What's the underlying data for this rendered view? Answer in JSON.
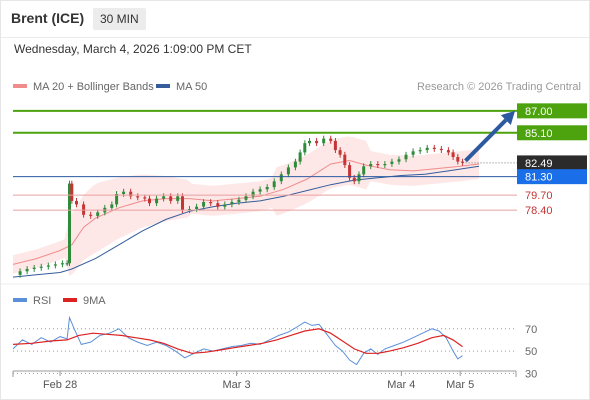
{
  "header": {
    "title": "Brent (ICE)",
    "timeframe": "30 MIN",
    "datetime": "Wednesday, March 4, 2026 1:09:00 PM CET"
  },
  "legend": {
    "items": [
      {
        "label": "MA 20 + Bollinger Bands",
        "color": "#f08c8c"
      },
      {
        "label": "MA 50",
        "color": "#355c9b"
      }
    ],
    "copyright": "Research © 2026 Trading Central"
  },
  "colors": {
    "up_candle": "#2e8b3a",
    "down_candle": "#c43535",
    "bollinger_fill": "#fde3e3",
    "ma20": "#f08c8c",
    "ma50": "#355c9b",
    "resistance": "#4ca30d",
    "support": "#e8a0a0",
    "pivot": "#2c5aa0",
    "last_price_tag": "#2b2b2b",
    "pivot_tag": "#1a6ee8",
    "arrow": "#2c5aa0",
    "rsi": "#5b8fd8",
    "rsi_ma": "#dd2222"
  },
  "chart_data": [
    {
      "type": "line",
      "subtype": "candlestick",
      "ylim": [
        72.0,
        88.2
      ],
      "x_ticks": [
        "Feb 28",
        "Mar 3",
        "Mar 4",
        "Mar 5"
      ],
      "last_price": 82.49,
      "levels": [
        {
          "label": "87.00",
          "value": 87.0,
          "kind": "resistance"
        },
        {
          "label": "85.10",
          "value": 85.1,
          "kind": "resistance"
        },
        {
          "label": "82.49",
          "value": 82.49,
          "kind": "last"
        },
        {
          "label": "81.30",
          "value": 81.3,
          "kind": "pivot"
        },
        {
          "label": "79.70",
          "value": 79.7,
          "kind": "support"
        },
        {
          "label": "78.40",
          "value": 78.4,
          "kind": "support"
        }
      ],
      "series": [
        {
          "name": "MA 20 + Bollinger Bands",
          "values": [
            {
              "x": 0,
              "y": 73.7
            },
            {
              "x": 10,
              "y": 74.2
            },
            {
              "x": 20,
              "y": 74.9
            },
            {
              "x": 25,
              "y": 75.4
            },
            {
              "x": 30,
              "y": 76.9
            },
            {
              "x": 35,
              "y": 77.7
            },
            {
              "x": 45,
              "y": 78.6
            },
            {
              "x": 55,
              "y": 79.2
            },
            {
              "x": 65,
              "y": 79.4
            },
            {
              "x": 75,
              "y": 79.4
            },
            {
              "x": 85,
              "y": 79.2
            },
            {
              "x": 95,
              "y": 79.4
            },
            {
              "x": 105,
              "y": 79.6
            },
            {
              "x": 115,
              "y": 80.2
            },
            {
              "x": 125,
              "y": 81.1
            },
            {
              "x": 135,
              "y": 82.4
            },
            {
              "x": 143,
              "y": 82.7
            },
            {
              "x": 150,
              "y": 82.3
            },
            {
              "x": 160,
              "y": 81.9
            },
            {
              "x": 170,
              "y": 81.8
            },
            {
              "x": 180,
              "y": 82.0
            },
            {
              "x": 190,
              "y": 82.2
            },
            {
              "x": 198,
              "y": 82.4
            }
          ]
        },
        {
          "name": "MA 50",
          "values": [
            {
              "x": 0,
              "y": 72.6
            },
            {
              "x": 10,
              "y": 72.8
            },
            {
              "x": 20,
              "y": 73.0
            },
            {
              "x": 25,
              "y": 73.3
            },
            {
              "x": 35,
              "y": 74.2
            },
            {
              "x": 45,
              "y": 75.4
            },
            {
              "x": 55,
              "y": 76.6
            },
            {
              "x": 65,
              "y": 77.6
            },
            {
              "x": 75,
              "y": 78.3
            },
            {
              "x": 85,
              "y": 78.7
            },
            {
              "x": 95,
              "y": 79.0
            },
            {
              "x": 105,
              "y": 79.2
            },
            {
              "x": 115,
              "y": 79.6
            },
            {
              "x": 125,
              "y": 80.1
            },
            {
              "x": 135,
              "y": 80.6
            },
            {
              "x": 145,
              "y": 81.0
            },
            {
              "x": 155,
              "y": 81.2
            },
            {
              "x": 165,
              "y": 81.4
            },
            {
              "x": 175,
              "y": 81.5
            },
            {
              "x": 185,
              "y": 81.8
            },
            {
              "x": 198,
              "y": 82.2
            }
          ]
        },
        {
          "name": "Price",
          "values": [
            {
              "x": 0,
              "y": 72.8
            },
            {
              "x": 3,
              "y": 73.1
            },
            {
              "x": 6,
              "y": 73.3
            },
            {
              "x": 9,
              "y": 73.4
            },
            {
              "x": 12,
              "y": 73.5
            },
            {
              "x": 15,
              "y": 73.6
            },
            {
              "x": 18,
              "y": 73.7
            },
            {
              "x": 21,
              "y": 73.8
            },
            {
              "x": 23,
              "y": 73.8
            },
            {
              "x": 24,
              "y": 80.7
            },
            {
              "x": 25,
              "y": 79.2
            },
            {
              "x": 27,
              "y": 78.9
            },
            {
              "x": 30,
              "y": 78.0
            },
            {
              "x": 33,
              "y": 77.9
            },
            {
              "x": 36,
              "y": 78.2
            },
            {
              "x": 39,
              "y": 78.6
            },
            {
              "x": 42,
              "y": 78.9
            },
            {
              "x": 44,
              "y": 79.8
            },
            {
              "x": 47,
              "y": 80.0
            },
            {
              "x": 50,
              "y": 79.6
            },
            {
              "x": 53,
              "y": 79.5
            },
            {
              "x": 56,
              "y": 79.4
            },
            {
              "x": 58,
              "y": 79.0
            },
            {
              "x": 61,
              "y": 79.4
            },
            {
              "x": 64,
              "y": 79.6
            },
            {
              "x": 67,
              "y": 79.2
            },
            {
              "x": 70,
              "y": 79.6
            },
            {
              "x": 72,
              "y": 78.4
            },
            {
              "x": 75,
              "y": 78.5
            },
            {
              "x": 78,
              "y": 78.7
            },
            {
              "x": 81,
              "y": 79.1
            },
            {
              "x": 84,
              "y": 79.0
            },
            {
              "x": 87,
              "y": 78.7
            },
            {
              "x": 90,
              "y": 78.9
            },
            {
              "x": 93,
              "y": 79.1
            },
            {
              "x": 96,
              "y": 79.3
            },
            {
              "x": 99,
              "y": 79.6
            },
            {
              "x": 102,
              "y": 80.0
            },
            {
              "x": 105,
              "y": 80.2
            },
            {
              "x": 108,
              "y": 80.4
            },
            {
              "x": 111,
              "y": 80.9
            },
            {
              "x": 114,
              "y": 81.5
            },
            {
              "x": 117,
              "y": 82.1
            },
            {
              "x": 120,
              "y": 82.6
            },
            {
              "x": 122,
              "y": 83.4
            },
            {
              "x": 124,
              "y": 84.2
            },
            {
              "x": 126,
              "y": 84.4
            },
            {
              "x": 129,
              "y": 84.2
            },
            {
              "x": 132,
              "y": 84.6
            },
            {
              "x": 135,
              "y": 84.4
            },
            {
              "x": 137,
              "y": 83.6
            },
            {
              "x": 139,
              "y": 83.2
            },
            {
              "x": 141,
              "y": 82.3
            },
            {
              "x": 143,
              "y": 81.2
            },
            {
              "x": 145,
              "y": 80.9
            },
            {
              "x": 147,
              "y": 81.5
            },
            {
              "x": 149,
              "y": 82.2
            },
            {
              "x": 152,
              "y": 82.4
            },
            {
              "x": 155,
              "y": 82.3
            },
            {
              "x": 158,
              "y": 82.4
            },
            {
              "x": 161,
              "y": 82.6
            },
            {
              "x": 164,
              "y": 82.8
            },
            {
              "x": 167,
              "y": 83.2
            },
            {
              "x": 170,
              "y": 83.5
            },
            {
              "x": 173,
              "y": 83.6
            },
            {
              "x": 176,
              "y": 83.8
            },
            {
              "x": 179,
              "y": 83.7
            },
            {
              "x": 182,
              "y": 83.6
            },
            {
              "x": 185,
              "y": 83.4
            },
            {
              "x": 187,
              "y": 83.0
            },
            {
              "x": 189,
              "y": 82.6
            },
            {
              "x": 191,
              "y": 82.5
            }
          ]
        }
      ]
    },
    {
      "type": "line",
      "ylim": [
        25,
        85
      ],
      "y_ticks": [
        70,
        50,
        30
      ],
      "series": [
        {
          "name": "RSI",
          "values": [
            {
              "x": 0,
              "y": 52
            },
            {
              "x": 4,
              "y": 60
            },
            {
              "x": 8,
              "y": 56
            },
            {
              "x": 12,
              "y": 62
            },
            {
              "x": 16,
              "y": 58
            },
            {
              "x": 20,
              "y": 63
            },
            {
              "x": 23,
              "y": 61
            },
            {
              "x": 24,
              "y": 80
            },
            {
              "x": 26,
              "y": 70
            },
            {
              "x": 29,
              "y": 56
            },
            {
              "x": 33,
              "y": 58
            },
            {
              "x": 37,
              "y": 64
            },
            {
              "x": 41,
              "y": 66
            },
            {
              "x": 45,
              "y": 70
            },
            {
              "x": 49,
              "y": 62
            },
            {
              "x": 53,
              "y": 58
            },
            {
              "x": 57,
              "y": 55
            },
            {
              "x": 61,
              "y": 58
            },
            {
              "x": 65,
              "y": 55
            },
            {
              "x": 69,
              "y": 50
            },
            {
              "x": 73,
              "y": 44
            },
            {
              "x": 77,
              "y": 48
            },
            {
              "x": 81,
              "y": 52
            },
            {
              "x": 85,
              "y": 50
            },
            {
              "x": 89,
              "y": 52
            },
            {
              "x": 93,
              "y": 54
            },
            {
              "x": 97,
              "y": 55
            },
            {
              "x": 101,
              "y": 57
            },
            {
              "x": 105,
              "y": 56
            },
            {
              "x": 109,
              "y": 60
            },
            {
              "x": 113,
              "y": 64
            },
            {
              "x": 117,
              "y": 67
            },
            {
              "x": 121,
              "y": 72
            },
            {
              "x": 124,
              "y": 76
            },
            {
              "x": 127,
              "y": 73
            },
            {
              "x": 130,
              "y": 74
            },
            {
              "x": 133,
              "y": 66
            },
            {
              "x": 137,
              "y": 55
            },
            {
              "x": 140,
              "y": 50
            },
            {
              "x": 143,
              "y": 42
            },
            {
              "x": 146,
              "y": 38
            },
            {
              "x": 149,
              "y": 48
            },
            {
              "x": 152,
              "y": 52
            },
            {
              "x": 155,
              "y": 47
            },
            {
              "x": 158,
              "y": 52
            },
            {
              "x": 162,
              "y": 55
            },
            {
              "x": 166,
              "y": 58
            },
            {
              "x": 170,
              "y": 62
            },
            {
              "x": 174,
              "y": 66
            },
            {
              "x": 178,
              "y": 70
            },
            {
              "x": 181,
              "y": 68
            },
            {
              "x": 184,
              "y": 62
            },
            {
              "x": 187,
              "y": 50
            },
            {
              "x": 189,
              "y": 43
            },
            {
              "x": 191,
              "y": 46
            }
          ]
        },
        {
          "name": "9MA",
          "values": [
            {
              "x": 0,
              "y": 56
            },
            {
              "x": 8,
              "y": 57
            },
            {
              "x": 16,
              "y": 59
            },
            {
              "x": 23,
              "y": 60
            },
            {
              "x": 28,
              "y": 64
            },
            {
              "x": 34,
              "y": 66
            },
            {
              "x": 40,
              "y": 65
            },
            {
              "x": 46,
              "y": 64
            },
            {
              "x": 52,
              "y": 62
            },
            {
              "x": 58,
              "y": 60
            },
            {
              "x": 64,
              "y": 57
            },
            {
              "x": 70,
              "y": 52
            },
            {
              "x": 76,
              "y": 48
            },
            {
              "x": 82,
              "y": 49
            },
            {
              "x": 88,
              "y": 51
            },
            {
              "x": 94,
              "y": 53
            },
            {
              "x": 100,
              "y": 55
            },
            {
              "x": 106,
              "y": 57
            },
            {
              "x": 112,
              "y": 60
            },
            {
              "x": 118,
              "y": 64
            },
            {
              "x": 124,
              "y": 68
            },
            {
              "x": 130,
              "y": 70
            },
            {
              "x": 135,
              "y": 66
            },
            {
              "x": 140,
              "y": 59
            },
            {
              "x": 145,
              "y": 52
            },
            {
              "x": 150,
              "y": 48
            },
            {
              "x": 155,
              "y": 48
            },
            {
              "x": 160,
              "y": 50
            },
            {
              "x": 166,
              "y": 53
            },
            {
              "x": 172,
              "y": 57
            },
            {
              "x": 178,
              "y": 62
            },
            {
              "x": 183,
              "y": 64
            },
            {
              "x": 187,
              "y": 60
            },
            {
              "x": 191,
              "y": 54
            }
          ]
        }
      ]
    }
  ]
}
